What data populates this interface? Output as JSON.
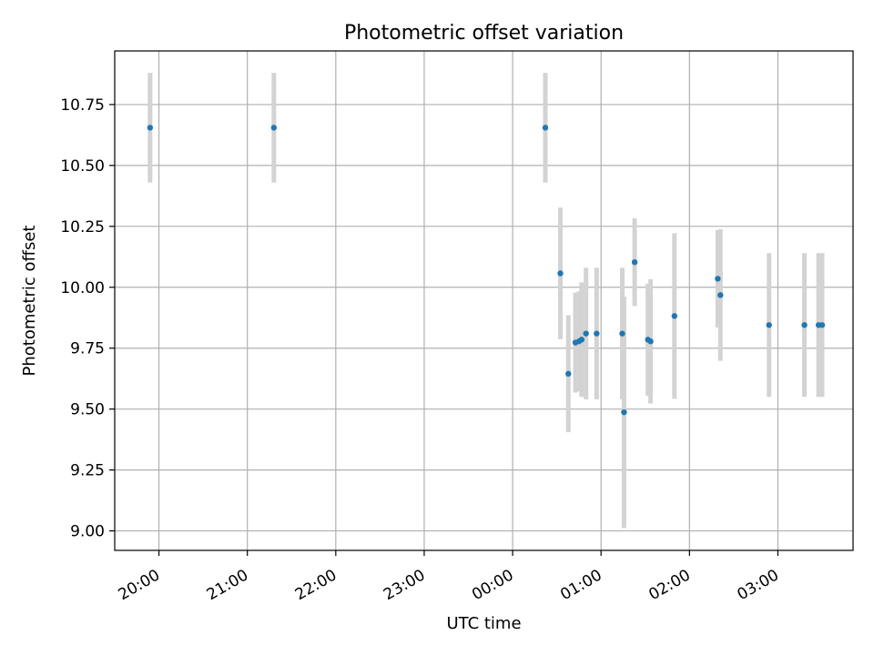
{
  "chart_data": {
    "type": "scatter",
    "title": "Photometric offset variation",
    "xlabel": "UTC time",
    "ylabel": "Photometric offset",
    "x_unit": "UTC hours (values past 24:00 continue into the next day)",
    "xlim": [
      19.5,
      27.85
    ],
    "ylim": [
      8.92,
      10.97
    ],
    "x_ticks": [
      {
        "value": 20,
        "label": "20:00"
      },
      {
        "value": 21,
        "label": "21:00"
      },
      {
        "value": 22,
        "label": "22:00"
      },
      {
        "value": 23,
        "label": "23:00"
      },
      {
        "value": 24,
        "label": "00:00"
      },
      {
        "value": 25,
        "label": "01:00"
      },
      {
        "value": 26,
        "label": "02:00"
      },
      {
        "value": 27,
        "label": "03:00"
      }
    ],
    "y_ticks": [
      {
        "value": 9.0,
        "label": "9.00"
      },
      {
        "value": 9.25,
        "label": "9.25"
      },
      {
        "value": 9.5,
        "label": "9.50"
      },
      {
        "value": 9.75,
        "label": "9.75"
      },
      {
        "value": 10.0,
        "label": "10.00"
      },
      {
        "value": 10.25,
        "label": "10.25"
      },
      {
        "value": 10.5,
        "label": "10.50"
      },
      {
        "value": 10.75,
        "label": "10.75"
      }
    ],
    "grid": true,
    "marker_color": "#1f77b4",
    "errorbar_color": "#d3d3d3",
    "points": [
      {
        "x": 19.9,
        "y": 10.655,
        "err": 0.225
      },
      {
        "x": 21.3,
        "y": 10.655,
        "err": 0.225
      },
      {
        "x": 24.37,
        "y": 10.655,
        "err": 0.225
      },
      {
        "x": 24.54,
        "y": 10.057,
        "err": 0.27
      },
      {
        "x": 24.63,
        "y": 9.645,
        "err": 0.24
      },
      {
        "x": 24.71,
        "y": 9.773,
        "err": 0.205
      },
      {
        "x": 24.75,
        "y": 9.778,
        "err": 0.205
      },
      {
        "x": 24.78,
        "y": 9.785,
        "err": 0.235
      },
      {
        "x": 24.83,
        "y": 9.81,
        "err": 0.27
      },
      {
        "x": 24.95,
        "y": 9.81,
        "err": 0.27
      },
      {
        "x": 25.24,
        "y": 9.81,
        "err": 0.27
      },
      {
        "x": 25.26,
        "y": 9.487,
        "err": 0.475
      },
      {
        "x": 25.38,
        "y": 10.103,
        "err": 0.18
      },
      {
        "x": 25.53,
        "y": 9.785,
        "err": 0.23
      },
      {
        "x": 25.56,
        "y": 9.778,
        "err": 0.255
      },
      {
        "x": 25.83,
        "y": 9.882,
        "err": 0.34
      },
      {
        "x": 26.32,
        "y": 10.035,
        "err": 0.2
      },
      {
        "x": 26.35,
        "y": 9.968,
        "err": 0.27
      },
      {
        "x": 26.9,
        "y": 9.845,
        "err": 0.295
      },
      {
        "x": 27.3,
        "y": 9.845,
        "err": 0.295
      },
      {
        "x": 27.46,
        "y": 9.845,
        "err": 0.295
      },
      {
        "x": 27.5,
        "y": 9.845,
        "err": 0.295
      }
    ]
  }
}
